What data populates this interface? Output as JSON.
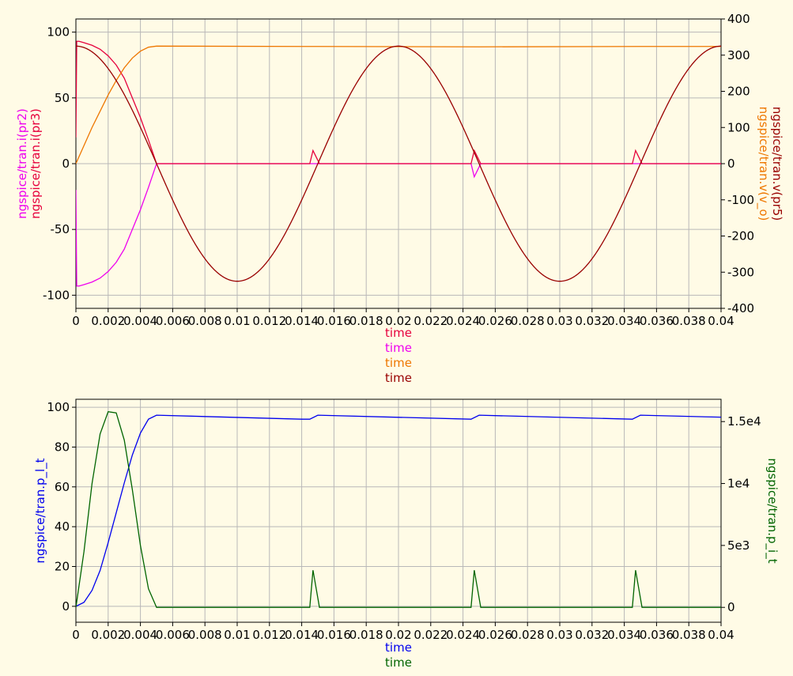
{
  "colors": {
    "background": "#fffbe6",
    "grid": "#b8b8b8",
    "axis": "#000000",
    "magenta": "#ee00ee",
    "red": "#e6003c",
    "orange": "#ee7700",
    "darkred": "#990000",
    "blue": "#0000ee",
    "green": "#006400"
  },
  "chart_data": [
    {
      "type": "line",
      "xlabel": "time",
      "x_ticks": [
        "0",
        "0.002",
        "0.004",
        "0.006",
        "0.008",
        "0.01",
        "0.012",
        "0.014",
        "0.016",
        "0.018",
        "0.02",
        "0.022",
        "0.024",
        "0.026",
        "0.028",
        "0.03",
        "0.032",
        "0.034",
        "0.036",
        "0.038",
        "0.04"
      ],
      "xlim": [
        0,
        0.04
      ],
      "ylim_left": [
        -110,
        110
      ],
      "ylim_right": [
        -400,
        400
      ],
      "left_ticks": [
        -100,
        -50,
        0,
        50,
        100
      ],
      "right_ticks": [
        -400,
        -300,
        -200,
        -100,
        0,
        100,
        200,
        300,
        400
      ],
      "left_labels": [
        "ngspice/tran.i(pr2)",
        "ngspice/tran.i(pr3)"
      ],
      "right_labels": [
        "ngspice/tran.v(pr5)",
        "ngspice/tran.v(v_o)"
      ],
      "x_labels_stack": [
        "time",
        "time",
        "time",
        "time"
      ],
      "grid": true,
      "series": [
        {
          "name": "ngspice/tran.i(pr2)",
          "axis": "left",
          "color": "#ee00ee",
          "x": [
            0,
            5e-05,
            0.0002,
            0.0005,
            0.001,
            0.0015,
            0.002,
            0.0025,
            0.003,
            0.0035,
            0.004,
            0.0045,
            0.005,
            0.0145,
            0.0147,
            0.0149,
            0.0151,
            0.0245,
            0.0247,
            0.0249,
            0.0251,
            0.0345,
            0.0347,
            0.0349,
            0.0351,
            0.04
          ],
          "y": [
            -20,
            -93,
            -93,
            -92,
            -90,
            -87,
            -82,
            -75,
            -65,
            -50,
            -35,
            -18,
            0,
            0,
            0,
            0,
            0,
            0,
            -10,
            -5,
            0,
            0,
            0,
            0,
            0,
            0
          ]
        },
        {
          "name": "ngspice/tran.i(pr3)",
          "axis": "left",
          "color": "#e6003c",
          "x": [
            0,
            5e-05,
            0.0002,
            0.0005,
            0.001,
            0.0015,
            0.002,
            0.0025,
            0.003,
            0.0035,
            0.004,
            0.0045,
            0.005,
            0.0145,
            0.0147,
            0.0149,
            0.0151,
            0.0245,
            0.0247,
            0.0249,
            0.0251,
            0.0345,
            0.0347,
            0.0349,
            0.0351,
            0.04
          ],
          "y": [
            20,
            93,
            93,
            92,
            90,
            87,
            82,
            75,
            65,
            50,
            35,
            18,
            0,
            0,
            10,
            5,
            0,
            0,
            10,
            5,
            0,
            0,
            10,
            5,
            0,
            0
          ]
        },
        {
          "name": "ngspice/tran.v(v_o)",
          "axis": "right",
          "color": "#ee7700",
          "x": [
            0,
            0.0005,
            0.001,
            0.0015,
            0.002,
            0.0025,
            0.003,
            0.0035,
            0.004,
            0.0045,
            0.005,
            0.015,
            0.025,
            0.035,
            0.04
          ],
          "y": [
            0,
            50,
            100,
            145,
            190,
            230,
            265,
            292,
            311,
            322,
            325,
            324,
            323,
            324,
            324
          ]
        },
        {
          "name": "ngspice/tran.v(pr5)",
          "axis": "right",
          "color": "#990000",
          "formula": "325*cos(2*pi*50*t)",
          "amplitude": 325,
          "frequency": 50
        }
      ]
    },
    {
      "type": "line",
      "xlabel": "time",
      "x_ticks": [
        "0",
        "0.002",
        "0.004",
        "0.006",
        "0.008",
        "0.01",
        "0.012",
        "0.014",
        "0.016",
        "0.018",
        "0.02",
        "0.022",
        "0.024",
        "0.026",
        "0.028",
        "0.03",
        "0.032",
        "0.034",
        "0.036",
        "0.038",
        "0.04"
      ],
      "xlim": [
        0,
        0.04
      ],
      "ylim_left": [
        -8,
        104
      ],
      "ylim_right": [
        -1200,
        16800
      ],
      "left_ticks": [
        0,
        20,
        40,
        60,
        80,
        100
      ],
      "right_ticks": [
        0,
        5000,
        10000,
        15000
      ],
      "right_tick_labels": [
        "0",
        "5e3",
        "1e4",
        "1.5e4"
      ],
      "left_labels": [
        "ngspice/tran.p_l_t"
      ],
      "right_labels": [
        "ngspice/tran.p_i_t"
      ],
      "x_labels_stack": [
        "time",
        "time"
      ],
      "grid": true,
      "series": [
        {
          "name": "ngspice/tran.p_l_t",
          "axis": "left",
          "color": "#0000ee",
          "x": [
            0,
            0.0005,
            0.001,
            0.0015,
            0.002,
            0.0025,
            0.003,
            0.0035,
            0.004,
            0.0045,
            0.005,
            0.014,
            0.0145,
            0.015,
            0.0245,
            0.025,
            0.0345,
            0.035,
            0.04
          ],
          "y": [
            0,
            2,
            8,
            18,
            32,
            47,
            62,
            76,
            87,
            94,
            96,
            94,
            94,
            96,
            94,
            96,
            94,
            96,
            95
          ]
        },
        {
          "name": "ngspice/tran.p_i_t",
          "axis": "right",
          "color": "#006400",
          "x": [
            0,
            0.0005,
            0.001,
            0.0015,
            0.002,
            0.0025,
            0.003,
            0.0035,
            0.004,
            0.0045,
            0.005,
            0.0145,
            0.0147,
            0.0149,
            0.0151,
            0.0245,
            0.0247,
            0.0249,
            0.0251,
            0.0345,
            0.0347,
            0.0349,
            0.0351,
            0.04
          ],
          "y": [
            0,
            4500,
            10000,
            14000,
            15800,
            15700,
            13500,
            9500,
            5000,
            1500,
            0,
            0,
            3000,
            1500,
            0,
            0,
            3000,
            1500,
            0,
            0,
            3000,
            1500,
            0,
            0
          ]
        }
      ]
    }
  ]
}
